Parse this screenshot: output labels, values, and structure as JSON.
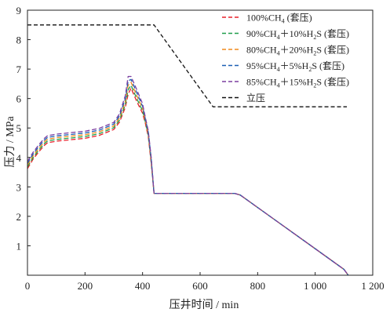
{
  "chart_data": {
    "type": "line",
    "xlabel": "压井时间 / min",
    "ylabel": "压力 / MPa",
    "xlim": [
      0,
      1200
    ],
    "ylim": [
      0,
      9
    ],
    "xticks": [
      0,
      200,
      400,
      600,
      800,
      1000,
      1200
    ],
    "xtick_labels": [
      "0",
      "200",
      "400",
      "600",
      "800",
      "1 000",
      "1 200"
    ],
    "yticks": [
      1,
      2,
      3,
      4,
      5,
      6,
      7,
      8,
      9
    ],
    "ytick_labels": [
      "1",
      "2",
      "3",
      "4",
      "5",
      "6",
      "7",
      "8",
      "9"
    ],
    "legend_position": "top-right",
    "series": [
      {
        "name": "100%CH4 (套压)",
        "legend": {
          "pre": "100%CH",
          "sub1": "4",
          "mid": "",
          "sub2": "",
          "post": " (套压)"
        },
        "color": "#e8202a",
        "dash": "dashed",
        "x": [
          0,
          20,
          40,
          60,
          70,
          100,
          150,
          200,
          250,
          300,
          320,
          340,
          350,
          360,
          380,
          400,
          410,
          420,
          430,
          440,
          450,
          500,
          600,
          700,
          720,
          740,
          800,
          900,
          1000,
          1100,
          1115
        ],
        "y": [
          3.62,
          3.95,
          4.2,
          4.42,
          4.5,
          4.55,
          4.6,
          4.65,
          4.75,
          4.95,
          5.2,
          5.7,
          6.15,
          6.35,
          5.9,
          5.5,
          5.15,
          4.7,
          3.8,
          2.78,
          2.78,
          2.78,
          2.78,
          2.78,
          2.78,
          2.72,
          2.3,
          1.6,
          0.9,
          0.2,
          0.0
        ]
      },
      {
        "name": "90%CH4＋10%H2S (套压)",
        "legend": {
          "pre": "90%CH",
          "sub1": "4",
          "mid": "＋10%H",
          "sub2": "2",
          "post": "S (套压)"
        },
        "color": "#1f9e4a",
        "dash": "dashed",
        "x": [
          0,
          20,
          40,
          60,
          70,
          100,
          150,
          200,
          250,
          300,
          320,
          340,
          350,
          360,
          380,
          400,
          410,
          420,
          430,
          440,
          450,
          500,
          600,
          700,
          720,
          740,
          800,
          900,
          1000,
          1100,
          1115
        ],
        "y": [
          3.68,
          4.0,
          4.26,
          4.48,
          4.56,
          4.61,
          4.66,
          4.71,
          4.81,
          5.01,
          5.27,
          5.8,
          6.3,
          6.45,
          6.0,
          5.58,
          5.2,
          4.75,
          3.85,
          2.78,
          2.78,
          2.78,
          2.78,
          2.78,
          2.78,
          2.72,
          2.3,
          1.6,
          0.9,
          0.2,
          0.0
        ]
      },
      {
        "name": "80%CH4＋20%H2S (套压)",
        "legend": {
          "pre": "80%CH",
          "sub1": "4",
          "mid": "＋20%H",
          "sub2": "2",
          "post": "S (套压)"
        },
        "color": "#f08a1c",
        "dash": "dashed",
        "x": [
          0,
          20,
          40,
          60,
          70,
          100,
          150,
          200,
          250,
          300,
          320,
          340,
          350,
          360,
          380,
          400,
          410,
          420,
          430,
          440,
          450,
          500,
          600,
          700,
          720,
          740,
          800,
          900,
          1000,
          1100,
          1115
        ],
        "y": [
          3.74,
          4.06,
          4.32,
          4.54,
          4.62,
          4.67,
          4.72,
          4.77,
          4.87,
          5.07,
          5.34,
          5.9,
          6.45,
          6.55,
          6.1,
          5.66,
          5.25,
          4.8,
          3.9,
          2.78,
          2.78,
          2.78,
          2.78,
          2.78,
          2.78,
          2.72,
          2.3,
          1.6,
          0.9,
          0.2,
          0.0
        ]
      },
      {
        "name": "95%CH4＋5%H2S (套压)",
        "legend": {
          "pre": "95%CH",
          "sub1": "4",
          "mid": "＋5%H",
          "sub2": "2",
          "post": "S (套压)"
        },
        "color": "#1a5fb4",
        "dash": "dashed",
        "x": [
          0,
          20,
          40,
          60,
          70,
          100,
          150,
          200,
          250,
          300,
          320,
          340,
          350,
          360,
          380,
          400,
          410,
          420,
          430,
          440,
          450,
          500,
          600,
          700,
          720,
          740,
          800,
          900,
          1000,
          1100,
          1115
        ],
        "y": [
          3.8,
          4.12,
          4.38,
          4.6,
          4.68,
          4.73,
          4.78,
          4.83,
          4.93,
          5.13,
          5.41,
          6.0,
          6.6,
          6.65,
          6.2,
          5.74,
          5.3,
          4.85,
          3.95,
          2.78,
          2.78,
          2.78,
          2.78,
          2.78,
          2.78,
          2.72,
          2.3,
          1.6,
          0.9,
          0.2,
          0.0
        ]
      },
      {
        "name": "85%CH4＋15%H2S (套压)",
        "legend": {
          "pre": "85%CH",
          "sub1": "4",
          "mid": "＋15%H",
          "sub2": "2",
          "post": "S (套压)"
        },
        "color": "#7b3fa0",
        "dash": "dashed",
        "x": [
          0,
          20,
          40,
          60,
          70,
          100,
          150,
          200,
          250,
          300,
          320,
          340,
          350,
          360,
          380,
          400,
          410,
          420,
          430,
          440,
          450,
          500,
          600,
          700,
          720,
          740,
          800,
          900,
          1000,
          1100,
          1115
        ],
        "y": [
          3.86,
          4.18,
          4.44,
          4.66,
          4.74,
          4.79,
          4.84,
          4.89,
          4.99,
          5.19,
          5.48,
          6.1,
          6.75,
          6.75,
          6.3,
          5.82,
          5.35,
          4.9,
          4.0,
          2.78,
          2.78,
          2.78,
          2.78,
          2.78,
          2.78,
          2.72,
          2.3,
          1.6,
          0.9,
          0.2,
          0.0
        ]
      },
      {
        "name": "立压",
        "legend": {
          "pre": "立压",
          "sub1": "",
          "mid": "",
          "sub2": "",
          "post": ""
        },
        "color": "#111111",
        "dash": "dashed",
        "x": [
          0,
          440,
          645,
          1110
        ],
        "y": [
          8.5,
          8.5,
          5.72,
          5.72
        ]
      }
    ]
  }
}
